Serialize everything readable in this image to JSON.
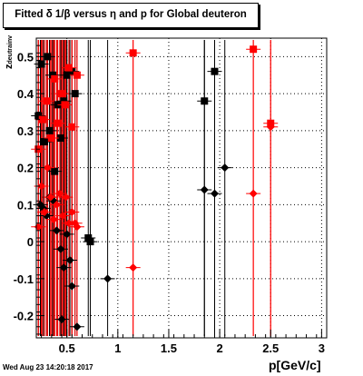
{
  "title": "Fitted δ 1/β versus η and p for Global deuteron",
  "footer": "Wed Aug 23 14:20:18 2017",
  "chart_data": {
    "type": "scatter",
    "title": "Fitted δ 1/β versus η and p for Global deuteron",
    "xlabel": "p[GeV/c]",
    "ylabel": "z",
    "ylabel_sub": "deutrainv",
    "xlim": [
      0.2,
      3.05
    ],
    "ylim": [
      -0.26,
      0.55
    ],
    "grid": true,
    "xticks": [
      "0.5",
      "1",
      "1.5",
      "2",
      "2.5",
      "3"
    ],
    "yticks": [
      "-0.2",
      "-0.1",
      "0",
      "0.1",
      "0.2",
      "0.3",
      "0.4",
      "0.5"
    ],
    "colors": {
      "black": "#000000",
      "red": "#ff0000"
    },
    "series": [
      {
        "marker": "square",
        "color": "black",
        "points": [
          [
            0.22,
            0.34
          ],
          [
            0.25,
            0.48
          ],
          [
            0.28,
            0.27
          ],
          [
            0.31,
            0.5
          ],
          [
            0.33,
            0.3
          ],
          [
            0.36,
            0.45
          ],
          [
            0.38,
            0.19
          ],
          [
            0.41,
            0.37
          ],
          [
            0.44,
            0.28
          ],
          [
            0.47,
            0.38
          ],
          [
            0.5,
            0.45
          ],
          [
            0.55,
            0.46
          ],
          [
            0.58,
            0.4
          ],
          [
            0.71,
            0.01
          ],
          [
            0.73,
            0.0
          ],
          [
            1.85,
            0.38
          ],
          [
            1.95,
            0.46
          ]
        ]
      },
      {
        "marker": "diamond",
        "color": "black",
        "points": [
          [
            0.24,
            0.1
          ],
          [
            0.27,
            0.09
          ],
          [
            0.3,
            0.07
          ],
          [
            0.33,
            0.12
          ],
          [
            0.37,
            0.11
          ],
          [
            0.4,
            0.03
          ],
          [
            0.44,
            -0.02
          ],
          [
            0.47,
            -0.07
          ],
          [
            0.5,
            0.02
          ],
          [
            0.53,
            -0.05
          ],
          [
            0.55,
            -0.12
          ],
          [
            0.6,
            -0.23
          ],
          [
            0.9,
            -0.1
          ],
          [
            1.85,
            0.14
          ],
          [
            1.95,
            0.13
          ],
          [
            2.05,
            0.2
          ],
          [
            0.45,
            -0.21
          ]
        ]
      },
      {
        "marker": "square",
        "color": "red",
        "points": [
          [
            0.22,
            0.25
          ],
          [
            0.26,
            0.33
          ],
          [
            0.3,
            0.38
          ],
          [
            0.35,
            0.28
          ],
          [
            0.38,
            0.44
          ],
          [
            0.41,
            0.32
          ],
          [
            0.45,
            0.4
          ],
          [
            0.48,
            0.37
          ],
          [
            0.52,
            0.47
          ],
          [
            0.55,
            0.31
          ],
          [
            0.6,
            0.45
          ],
          [
            1.15,
            0.51
          ],
          [
            2.33,
            0.52
          ],
          [
            2.5,
            0.32
          ]
        ]
      },
      {
        "marker": "diamond",
        "color": "red",
        "points": [
          [
            0.22,
            0.04
          ],
          [
            0.25,
            0.15
          ],
          [
            0.28,
            0.08
          ],
          [
            0.31,
            0.2
          ],
          [
            0.34,
            0.12
          ],
          [
            0.37,
            0.06
          ],
          [
            0.4,
            0.1
          ],
          [
            0.43,
            0.13
          ],
          [
            0.46,
            0.07
          ],
          [
            0.49,
            0.12
          ],
          [
            0.52,
            0.05
          ],
          [
            0.55,
            0.08
          ],
          [
            0.58,
            0.05
          ],
          [
            0.6,
            0.04
          ],
          [
            1.15,
            -0.07
          ],
          [
            2.33,
            0.13
          ],
          [
            2.5,
            0.31
          ]
        ]
      }
    ]
  }
}
